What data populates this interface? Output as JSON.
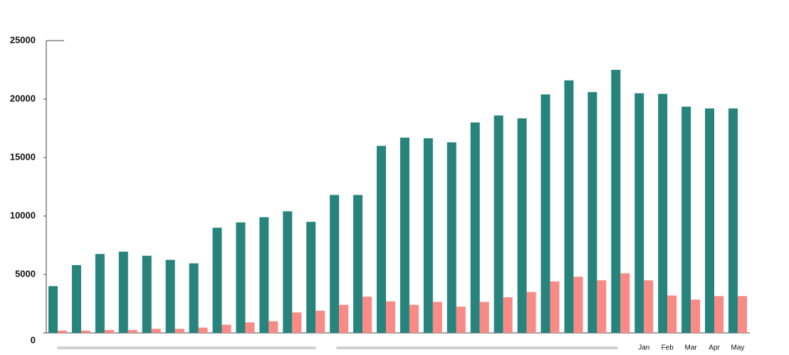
{
  "chart_data": {
    "type": "bar",
    "categories": [
      null,
      null,
      null,
      null,
      null,
      null,
      null,
      null,
      null,
      null,
      null,
      null,
      null,
      null,
      null,
      null,
      null,
      null,
      null,
      null,
      null,
      null,
      null,
      null,
      null,
      "Jan",
      "Feb",
      "Mar",
      "Apr",
      "May"
    ],
    "series": [
      {
        "color": "#26847c",
        "values": [
          4000,
          5800,
          6750,
          6950,
          6600,
          6250,
          5950,
          9000,
          9450,
          9900,
          10400,
          9500,
          11800,
          11800,
          16000,
          16700,
          16650,
          16300,
          18000,
          18600,
          18350,
          20400,
          21600,
          20600,
          22500,
          20500,
          20450,
          19350,
          19200,
          19200
        ]
      },
      {
        "color": "#f98a86",
        "values": [
          200,
          200,
          250,
          250,
          350,
          350,
          450,
          700,
          900,
          1000,
          1750,
          1900,
          2400,
          3100,
          2700,
          2400,
          2650,
          2250,
          2650,
          3050,
          3500,
          4400,
          4800,
          4500,
          5100,
          4500,
          3200,
          2850,
          3150,
          3150
        ]
      }
    ],
    "ylim": [
      0,
      25000
    ],
    "yticks": [
      0,
      5000,
      10000,
      15000,
      20000,
      25000
    ]
  }
}
